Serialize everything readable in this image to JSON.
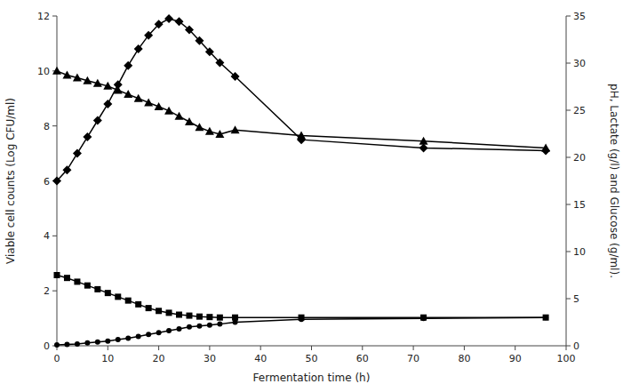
{
  "chart_data": {
    "type": "line",
    "xlabel": "Fermentation time (h)",
    "ylabel": "Viable cell counts (Log CFU/ml)",
    "y2label": "pH, Lactate (g/l) and Glucose (g/ml).",
    "x": [
      0,
      2,
      4,
      6,
      8,
      10,
      12,
      14,
      16,
      18,
      20,
      22,
      24,
      26,
      28,
      30,
      32,
      35,
      48,
      72,
      96
    ],
    "xlim": [
      0,
      100
    ],
    "xticks": [
      0,
      10,
      20,
      30,
      40,
      50,
      60,
      70,
      80,
      90,
      100
    ],
    "ylim": [
      0,
      12
    ],
    "yticks": [
      0,
      2,
      4,
      6,
      8,
      10,
      12
    ],
    "y2lim": [
      0,
      35
    ],
    "y2ticks": [
      0,
      5,
      10,
      15,
      20,
      25,
      30,
      35
    ],
    "grid": false,
    "legend": false,
    "series": [
      {
        "color": "#000000",
        "marker": "diamond",
        "axis": "y",
        "values": [
          6.0,
          6.4,
          7.0,
          7.6,
          8.2,
          8.8,
          9.5,
          10.2,
          10.8,
          11.3,
          11.7,
          11.9,
          11.8,
          11.5,
          11.1,
          10.7,
          10.3,
          9.8,
          7.5,
          7.2,
          7.1
        ]
      },
      {
        "color": "#000000",
        "marker": "triangle",
        "axis": "y",
        "values": [
          10.0,
          9.85,
          9.75,
          9.65,
          9.55,
          9.45,
          9.3,
          9.15,
          9.0,
          8.85,
          8.7,
          8.55,
          8.35,
          8.15,
          7.95,
          7.8,
          7.7,
          7.85,
          7.65,
          7.45,
          7.2
        ]
      },
      {
        "color": "#000000",
        "marker": "square",
        "axis": "y2",
        "values": [
          7.5,
          7.2,
          6.8,
          6.4,
          6.0,
          5.6,
          5.2,
          4.8,
          4.4,
          4.0,
          3.7,
          3.5,
          3.3,
          3.2,
          3.1,
          3.05,
          3.0,
          3.0,
          3.0,
          3.0,
          3.0
        ]
      },
      {
        "color": "#000000",
        "marker": "circle",
        "axis": "y2",
        "values": [
          0.1,
          0.15,
          0.2,
          0.3,
          0.4,
          0.5,
          0.65,
          0.8,
          1.0,
          1.2,
          1.4,
          1.6,
          1.8,
          2.0,
          2.1,
          2.2,
          2.3,
          2.5,
          2.8,
          2.9,
          3.0
        ]
      }
    ]
  }
}
